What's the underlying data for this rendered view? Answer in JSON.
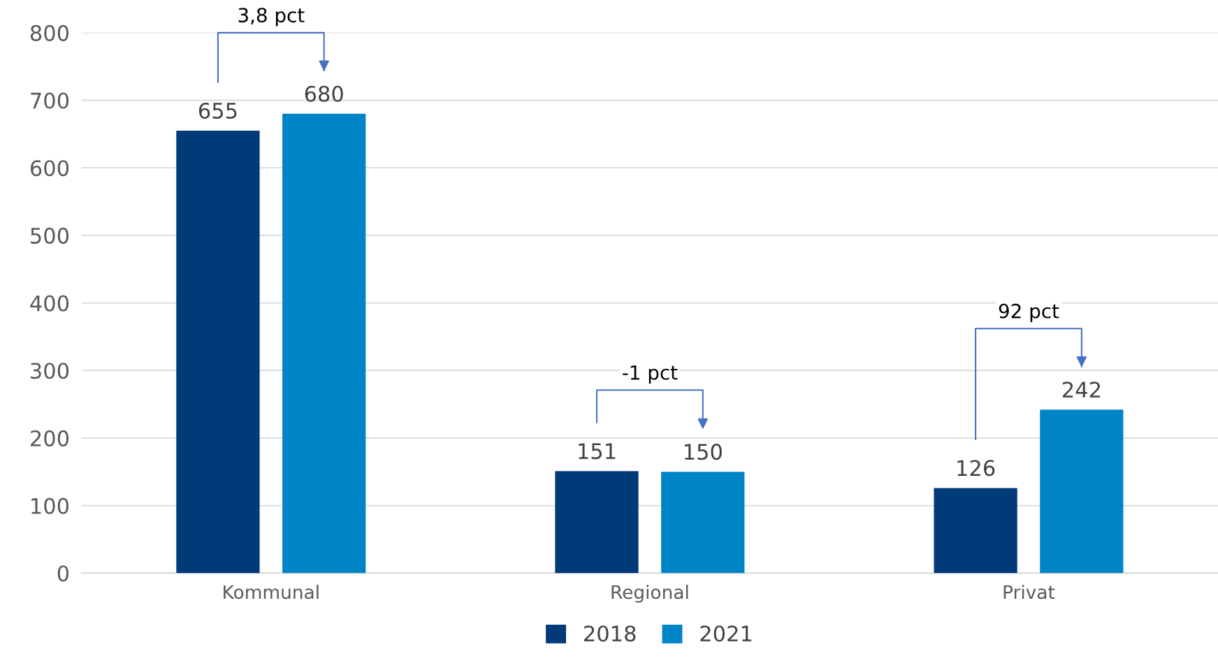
{
  "chart_data": {
    "type": "bar",
    "categories": [
      "Kommunal",
      "Regional",
      "Privat"
    ],
    "series": [
      {
        "name": "2018",
        "color": "#003a78",
        "values": [
          655,
          151,
          126
        ]
      },
      {
        "name": "2021",
        "color": "#0084c8",
        "values": [
          680,
          150,
          242
        ]
      }
    ],
    "ylim": [
      0,
      800
    ],
    "yticks": [
      0,
      100,
      200,
      300,
      400,
      500,
      600,
      700,
      800
    ],
    "grid": "y",
    "legend": "bottom",
    "data_labels": true,
    "annotations": [
      "3,8 pct",
      "-1 pct",
      "92 pct"
    ]
  }
}
